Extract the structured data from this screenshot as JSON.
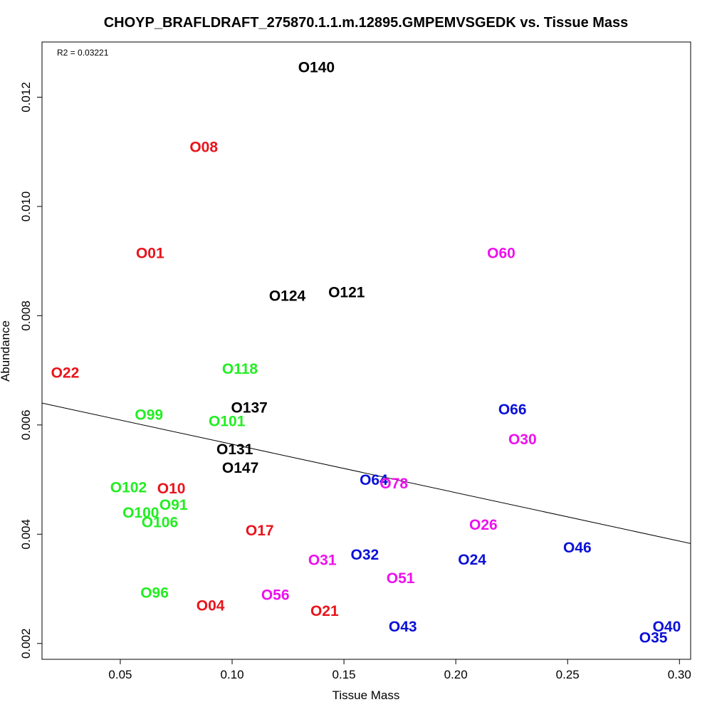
{
  "chart_data": {
    "type": "scatter",
    "title": "CHOYP_BRAFLDRAFT_275870.1.1.m.12895.GMPEMVSGEDK vs. Tissue Mass",
    "xlabel": "Tissue Mass",
    "ylabel": "Abundance",
    "annotation": "R2 = 0.03221",
    "xlim": [
      0.015,
      0.305
    ],
    "ylim": [
      0.00171,
      0.01301
    ],
    "x_ticks": [
      0.05,
      0.1,
      0.15,
      0.2,
      0.25,
      0.3
    ],
    "x_tick_labels": [
      "0.05",
      "0.10",
      "0.15",
      "0.20",
      "0.25",
      "0.30"
    ],
    "y_ticks": [
      0.002,
      0.004,
      0.006,
      0.008,
      0.01,
      0.012
    ],
    "y_tick_labels": [
      "0.002",
      "0.004",
      "0.006",
      "0.008",
      "0.010",
      "0.012"
    ],
    "regression_line": {
      "x": [
        0.015,
        0.305
      ],
      "y": [
        0.0064,
        0.00383
      ]
    },
    "colors": {
      "red": "#e8141c",
      "green": "#22ee22",
      "black": "#000000",
      "blue": "#0a10d8",
      "magenta": "#ee10ee"
    },
    "points": [
      {
        "label": "O140",
        "x": 0.1295,
        "y": 0.01254,
        "color": "#000000"
      },
      {
        "label": "O08",
        "x": 0.081,
        "y": 0.01108,
        "color": "#e8141c"
      },
      {
        "label": "O01",
        "x": 0.057,
        "y": 0.00914,
        "color": "#e8141c"
      },
      {
        "label": "O60",
        "x": 0.214,
        "y": 0.00914,
        "color": "#ee10ee"
      },
      {
        "label": "O124",
        "x": 0.1165,
        "y": 0.00836,
        "color": "#000000"
      },
      {
        "label": "O121",
        "x": 0.143,
        "y": 0.00842,
        "color": "#000000"
      },
      {
        "label": "O22",
        "x": 0.019,
        "y": 0.00695,
        "color": "#e8141c"
      },
      {
        "label": "O118",
        "x": 0.0955,
        "y": 0.00702,
        "color": "#22ee22"
      },
      {
        "label": "O137",
        "x": 0.0995,
        "y": 0.00631,
        "color": "#000000"
      },
      {
        "label": "O66",
        "x": 0.219,
        "y": 0.00628,
        "color": "#0a10d8"
      },
      {
        "label": "O99",
        "x": 0.0565,
        "y": 0.00618,
        "color": "#22ee22"
      },
      {
        "label": "O101",
        "x": 0.0895,
        "y": 0.00606,
        "color": "#22ee22"
      },
      {
        "label": "O30",
        "x": 0.2235,
        "y": 0.00573,
        "color": "#ee10ee"
      },
      {
        "label": "O131",
        "x": 0.093,
        "y": 0.00555,
        "color": "#000000"
      },
      {
        "label": "O147",
        "x": 0.0955,
        "y": 0.00521,
        "color": "#000000"
      },
      {
        "label": "O64",
        "x": 0.157,
        "y": 0.00499,
        "color": "#0a10d8"
      },
      {
        "label": "O78",
        "x": 0.166,
        "y": 0.00492,
        "color": "#ee10ee"
      },
      {
        "label": "O102",
        "x": 0.0455,
        "y": 0.00485,
        "color": "#22ee22"
      },
      {
        "label": "O10",
        "x": 0.0665,
        "y": 0.00483,
        "color": "#e8141c"
      },
      {
        "label": "O91",
        "x": 0.0675,
        "y": 0.00453,
        "color": "#22ee22"
      },
      {
        "label": "O100",
        "x": 0.051,
        "y": 0.00439,
        "color": "#22ee22"
      },
      {
        "label": "O106",
        "x": 0.0595,
        "y": 0.00421,
        "color": "#22ee22"
      },
      {
        "label": "O26",
        "x": 0.206,
        "y": 0.00417,
        "color": "#ee10ee"
      },
      {
        "label": "O17",
        "x": 0.106,
        "y": 0.00406,
        "color": "#e8141c"
      },
      {
        "label": "O46",
        "x": 0.248,
        "y": 0.00375,
        "color": "#0a10d8"
      },
      {
        "label": "O32",
        "x": 0.153,
        "y": 0.00362,
        "color": "#0a10d8"
      },
      {
        "label": "O31",
        "x": 0.134,
        "y": 0.00352,
        "color": "#ee10ee"
      },
      {
        "label": "O24",
        "x": 0.201,
        "y": 0.00353,
        "color": "#0a10d8"
      },
      {
        "label": "O51",
        "x": 0.169,
        "y": 0.00319,
        "color": "#ee10ee"
      },
      {
        "label": "O96",
        "x": 0.059,
        "y": 0.00292,
        "color": "#22ee22"
      },
      {
        "label": "O56",
        "x": 0.113,
        "y": 0.00288,
        "color": "#ee10ee"
      },
      {
        "label": "O04",
        "x": 0.084,
        "y": 0.00269,
        "color": "#e8141c"
      },
      {
        "label": "O21",
        "x": 0.135,
        "y": 0.00259,
        "color": "#e8141c"
      },
      {
        "label": "O43",
        "x": 0.17,
        "y": 0.0023,
        "color": "#0a10d8"
      },
      {
        "label": "O40",
        "x": 0.288,
        "y": 0.0023,
        "color": "#0a10d8"
      },
      {
        "label": "O35",
        "x": 0.282,
        "y": 0.0021,
        "color": "#0a10d8"
      }
    ]
  }
}
